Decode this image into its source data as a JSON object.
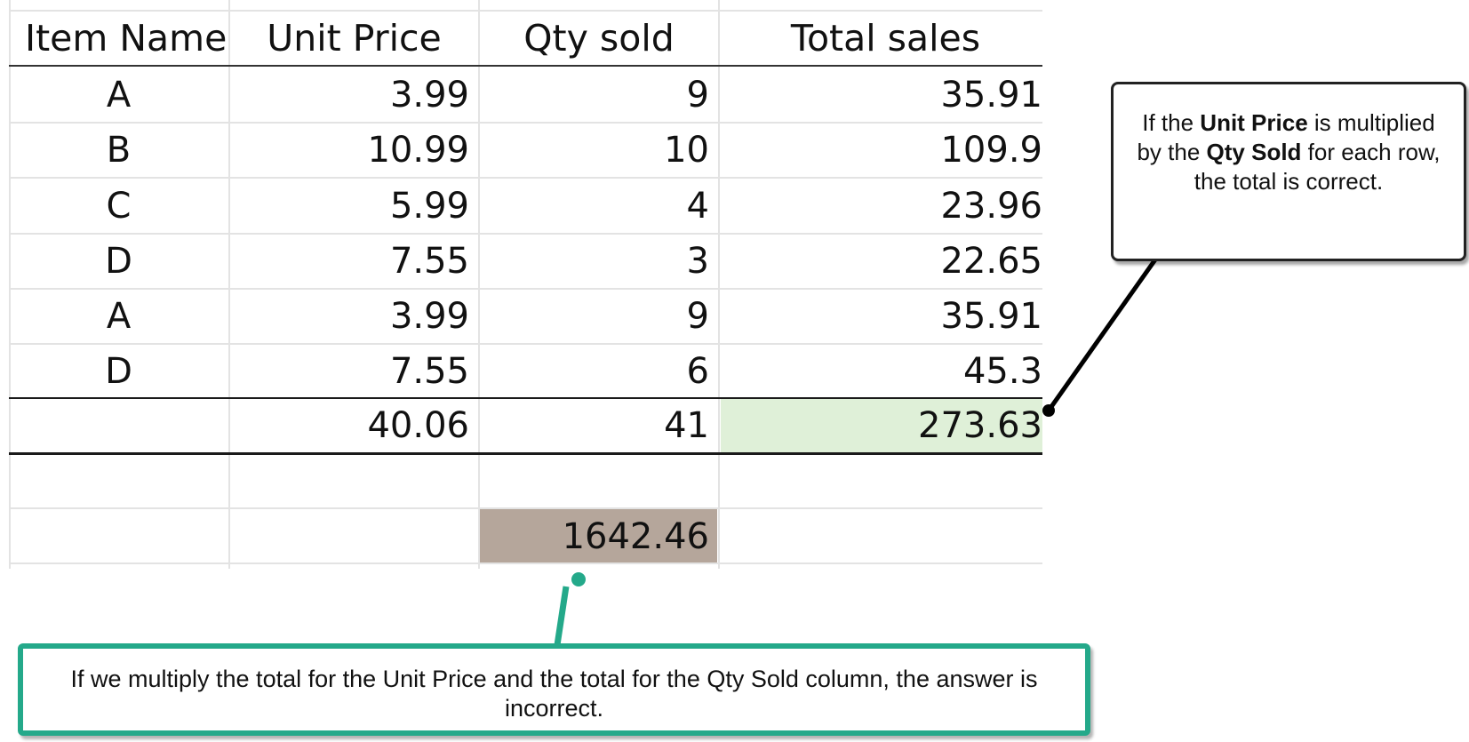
{
  "table": {
    "headers": {
      "item_name": "Item Name",
      "unit_price": "Unit Price",
      "qty_sold": "Qty sold",
      "total_sales": "Total sales"
    },
    "rows": [
      {
        "item": "A",
        "unit_price": "3.99",
        "qty": "9",
        "total": "35.91"
      },
      {
        "item": "B",
        "unit_price": "10.99",
        "qty": "10",
        "total": "109.9"
      },
      {
        "item": "C",
        "unit_price": "5.99",
        "qty": "4",
        "total": "23.96"
      },
      {
        "item": "D",
        "unit_price": "7.55",
        "qty": "3",
        "total": "22.65"
      },
      {
        "item": "A",
        "unit_price": "3.99",
        "qty": "9",
        "total": "35.91"
      },
      {
        "item": "D",
        "unit_price": "7.55",
        "qty": "6",
        "total": "45.3"
      }
    ],
    "totals": {
      "unit_price": "40.06",
      "qty": "41",
      "total": "273.63"
    },
    "product_of_totals": "1642.46"
  },
  "callouts": {
    "right": {
      "text_1": "If the ",
      "bold_1": "Unit Price",
      "text_2": " is multiplied by the ",
      "bold_2": "Qty Sold",
      "text_3": " for each row, the total is correct."
    },
    "bottom": {
      "text": "If we multiply the total for the Unit Price and the total for the Qty Sold column, the answer is incorrect."
    }
  },
  "colors": {
    "total_sales_highlight": "#dff0d8",
    "product_highlight": "#b5a69b",
    "bottom_callout_border": "#24a98a",
    "right_callout_border": "#222222"
  }
}
